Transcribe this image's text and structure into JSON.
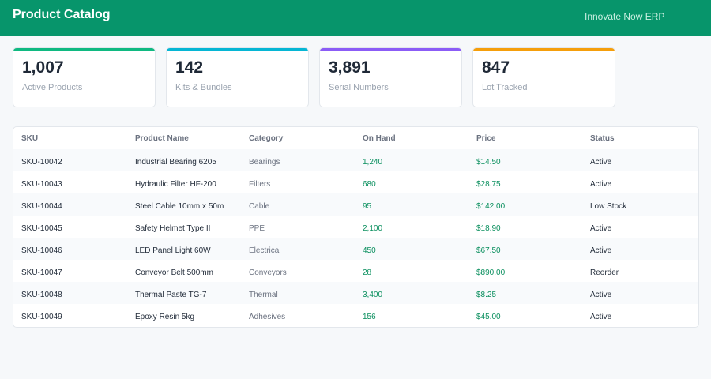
{
  "header": {
    "title": "Product Catalog",
    "brand": "Innovate Now ERP"
  },
  "stats": [
    {
      "value": "1,007",
      "label": "Active Products",
      "color": "#10b981"
    },
    {
      "value": "142",
      "label": "Kits & Bundles",
      "color": "#06b6d4"
    },
    {
      "value": "3,891",
      "label": "Serial Numbers",
      "color": "#8b5cf6"
    },
    {
      "value": "847",
      "label": "Lot Tracked",
      "color": "#f59e0b"
    }
  ],
  "table": {
    "columns": [
      "SKU",
      "Product Name",
      "Category",
      "On Hand",
      "Price",
      "Status"
    ],
    "rows": [
      {
        "sku": "SKU-10042",
        "name": "Industrial Bearing 6205",
        "category": "Bearings",
        "on_hand": "1,240",
        "price": "$14.50",
        "status": "Active"
      },
      {
        "sku": "SKU-10043",
        "name": "Hydraulic Filter HF-200",
        "category": "Filters",
        "on_hand": "680",
        "price": "$28.75",
        "status": "Active"
      },
      {
        "sku": "SKU-10044",
        "name": "Steel Cable 10mm x 50m",
        "category": "Cable",
        "on_hand": "95",
        "price": "$142.00",
        "status": "Low Stock"
      },
      {
        "sku": "SKU-10045",
        "name": "Safety Helmet Type II",
        "category": "PPE",
        "on_hand": "2,100",
        "price": "$18.90",
        "status": "Active"
      },
      {
        "sku": "SKU-10046",
        "name": "LED Panel Light 60W",
        "category": "Electrical",
        "on_hand": "450",
        "price": "$67.50",
        "status": "Active"
      },
      {
        "sku": "SKU-10047",
        "name": "Conveyor Belt 500mm",
        "category": "Conveyors",
        "on_hand": "28",
        "price": "$890.00",
        "status": "Reorder"
      },
      {
        "sku": "SKU-10048",
        "name": "Thermal Paste TG-7",
        "category": "Thermal",
        "on_hand": "3,400",
        "price": "$8.25",
        "status": "Active"
      },
      {
        "sku": "SKU-10049",
        "name": "Epoxy Resin 5kg",
        "category": "Adhesives",
        "on_hand": "156",
        "price": "$45.00",
        "status": "Active"
      }
    ]
  }
}
